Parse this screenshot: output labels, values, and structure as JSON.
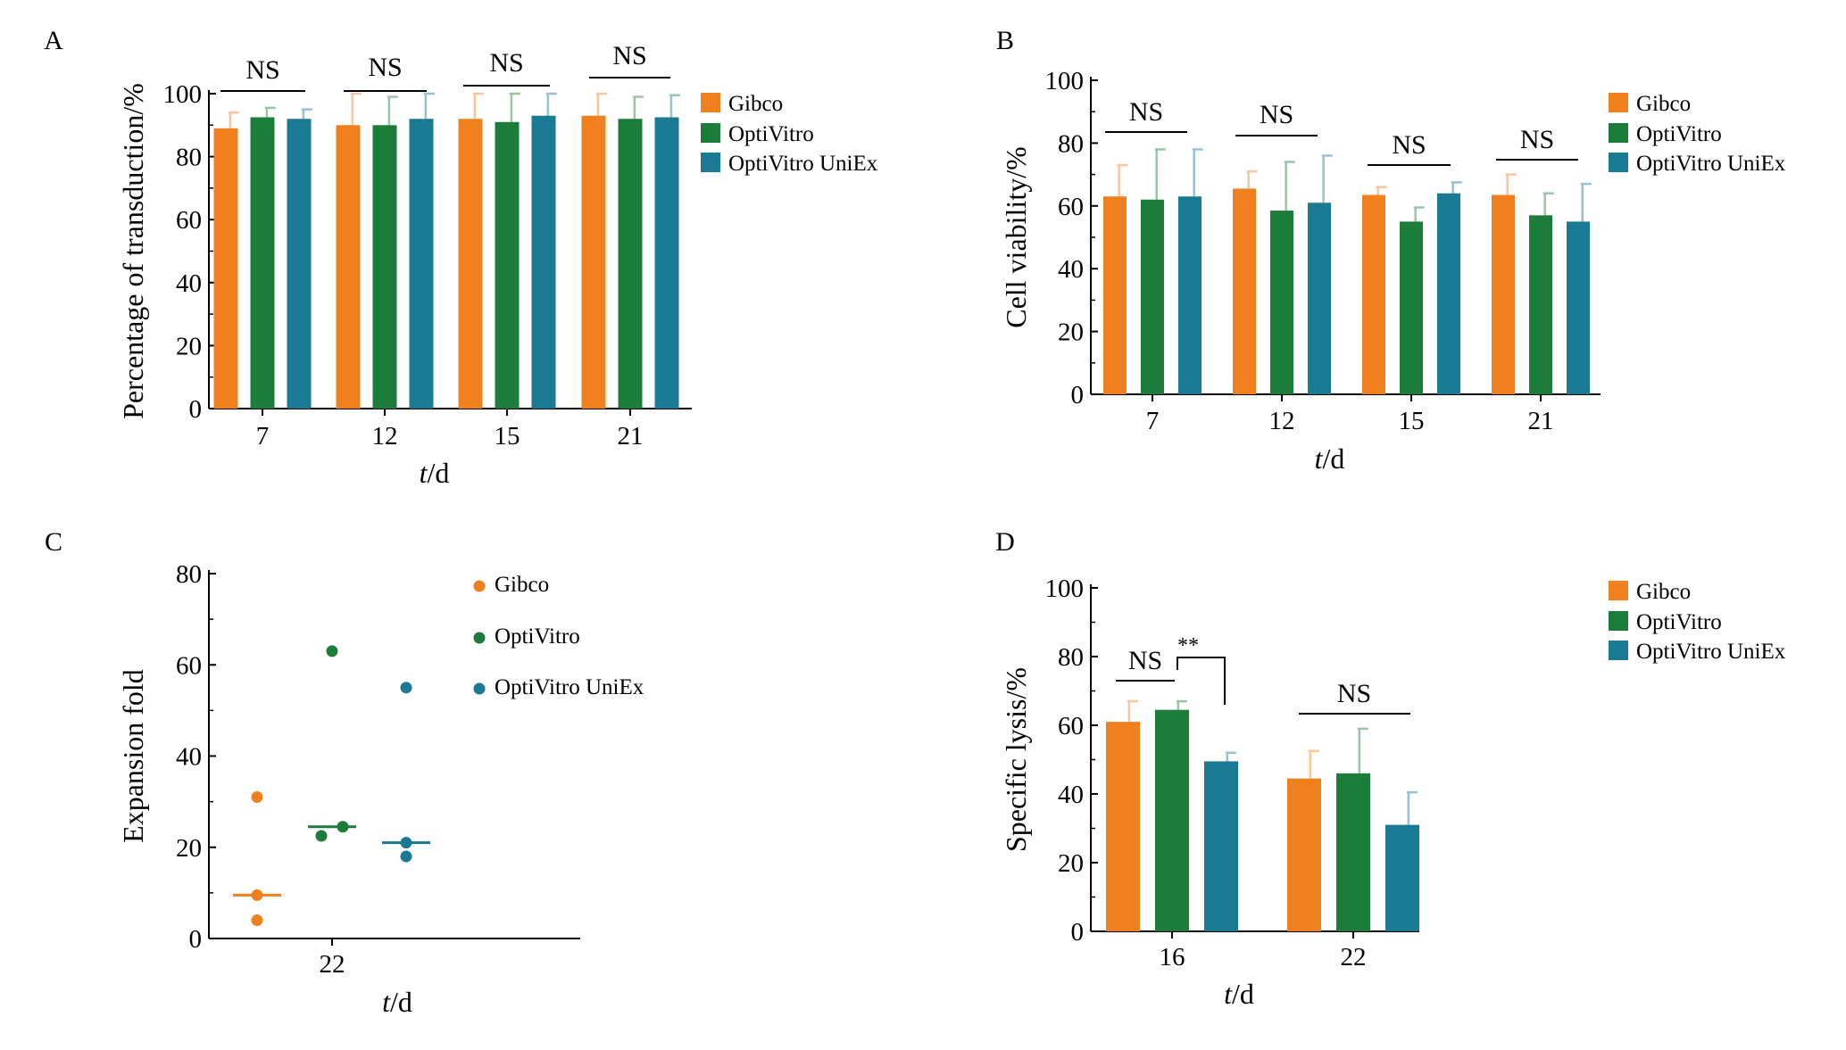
{
  "colors": {
    "Gibco": "#F0801E",
    "OptiVitro": "#1C7D3A",
    "OptiVitro UniEx": "#1B7A93"
  },
  "chart_data": [
    {
      "panel": "A",
      "type": "bar",
      "categories": [
        "7",
        "12",
        "15",
        "21"
      ],
      "series": [
        {
          "name": "Gibco",
          "values": [
            89,
            90,
            92,
            93
          ],
          "errors": [
            5,
            10,
            8,
            7
          ]
        },
        {
          "name": "OptiVitro",
          "values": [
            92.5,
            90,
            91,
            92
          ],
          "errors": [
            3,
            9,
            9,
            7
          ]
        },
        {
          "name": "OptiVitro UniEx",
          "values": [
            92,
            92,
            93,
            92.5
          ],
          "errors": [
            3,
            8,
            7,
            7
          ]
        }
      ],
      "annotations": [
        "NS",
        "NS",
        "NS",
        "NS"
      ],
      "xlabel": "t/d",
      "ylabel": "Percentage of transduction/%",
      "ylim": [
        0,
        100
      ],
      "yticks": [
        "0",
        "20",
        "40",
        "60",
        "80",
        "100"
      ],
      "legend": [
        "Gibco",
        "OptiVitro",
        "OptiVitro UniEx"
      ]
    },
    {
      "panel": "B",
      "type": "bar",
      "categories": [
        "7",
        "12",
        "15",
        "21"
      ],
      "series": [
        {
          "name": "Gibco",
          "values": [
            63,
            65.5,
            63.5,
            63.5
          ],
          "errors": [
            10,
            5.5,
            2.5,
            6.5
          ]
        },
        {
          "name": "OptiVitro",
          "values": [
            62,
            58.5,
            55,
            57
          ],
          "errors": [
            16,
            15.5,
            4.5,
            7
          ]
        },
        {
          "name": "OptiVitro UniEx",
          "values": [
            63,
            61,
            64,
            55
          ],
          "errors": [
            15,
            15,
            3.5,
            12
          ]
        }
      ],
      "annotations": [
        "NS",
        "NS",
        "NS",
        "NS"
      ],
      "xlabel": "t/d",
      "ylabel": "Cell viability/%",
      "ylim": [
        0,
        100
      ],
      "yticks": [
        "0",
        "20",
        "40",
        "60",
        "80",
        "100"
      ],
      "legend": [
        "Gibco",
        "OptiVitro",
        "OptiVitro UniEx"
      ]
    },
    {
      "panel": "C",
      "type": "scatter",
      "categories": [
        "22"
      ],
      "series": [
        {
          "name": "Gibco",
          "points": [
            31,
            9.5,
            4
          ],
          "median": 9.5
        },
        {
          "name": "OptiVitro",
          "points": [
            63,
            24.5,
            22.5
          ],
          "median": 24.5
        },
        {
          "name": "OptiVitro UniEx",
          "points": [
            55,
            21,
            18
          ],
          "median": 21
        }
      ],
      "xlabel": "t/d",
      "ylabel": "Expansion fold",
      "ylim": [
        0,
        80
      ],
      "yticks": [
        "0",
        "20",
        "40",
        "60",
        "80"
      ],
      "legend": [
        "Gibco",
        "OptiVitro",
        "OptiVitro UniEx"
      ]
    },
    {
      "panel": "D",
      "type": "bar",
      "categories": [
        "16",
        "22"
      ],
      "series": [
        {
          "name": "Gibco",
          "values": [
            61,
            44.5
          ],
          "errors": [
            6,
            8
          ]
        },
        {
          "name": "OptiVitro",
          "values": [
            64.5,
            46
          ],
          "errors": [
            2.5,
            13
          ]
        },
        {
          "name": "OptiVitro UniEx",
          "values": [
            49.5,
            31
          ],
          "errors": [
            2.5,
            9.5
          ]
        }
      ],
      "annotations": [
        "NS",
        "**",
        "NS"
      ],
      "xlabel": "t/d",
      "ylabel": "Specific lysis/%",
      "ylim": [
        0,
        100
      ],
      "yticks": [
        "0",
        "20",
        "40",
        "60",
        "80",
        "100"
      ],
      "legend": [
        "Gibco",
        "OptiVitro",
        "OptiVitro UniEx"
      ]
    }
  ]
}
